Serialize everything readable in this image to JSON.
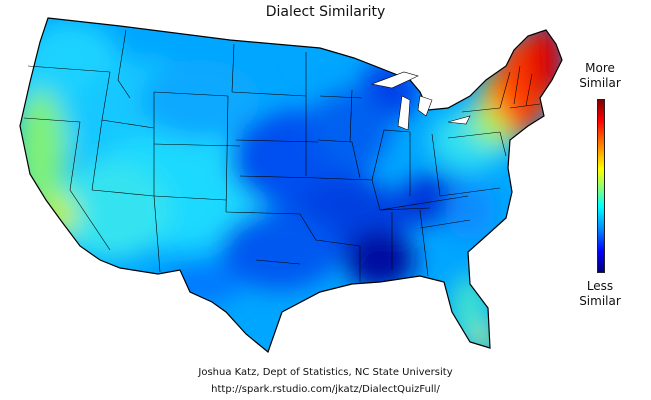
{
  "title": "Dialect Similarity",
  "legend": {
    "high_label_line1": "More",
    "high_label_line2": "Similar",
    "low_label_line1": "Less",
    "low_label_line2": "Similar",
    "colors": [
      "#7f0000",
      "#ff0000",
      "#ff7f00",
      "#ffff00",
      "#7fff7f",
      "#00ffff",
      "#007fff",
      "#0000ff",
      "#00007f"
    ]
  },
  "credits": {
    "line1": "Joshua Katz, Dept of Statistics, NC State University",
    "line2": "http://spark.rstudio.com/jkatz/DialectQuizFull/"
  },
  "map": {
    "region": "Contiguous United States",
    "most_similar_area": "New England",
    "least_similar_area": "Mississippi / Alabama"
  }
}
